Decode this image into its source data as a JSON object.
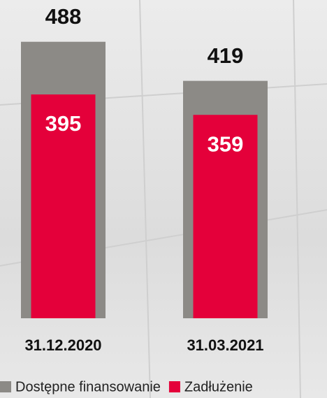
{
  "chart_data": {
    "type": "bar",
    "categories": [
      "31.12.2020",
      "31.03.2021"
    ],
    "series": [
      {
        "name": "Dostępne finansowanie",
        "color": "#8c8a86",
        "values": [
          488,
          419
        ]
      },
      {
        "name": "Zadłużenie",
        "color": "#e4003a",
        "values": [
          395,
          359
        ]
      }
    ],
    "ylim": [
      0,
      500
    ]
  }
}
